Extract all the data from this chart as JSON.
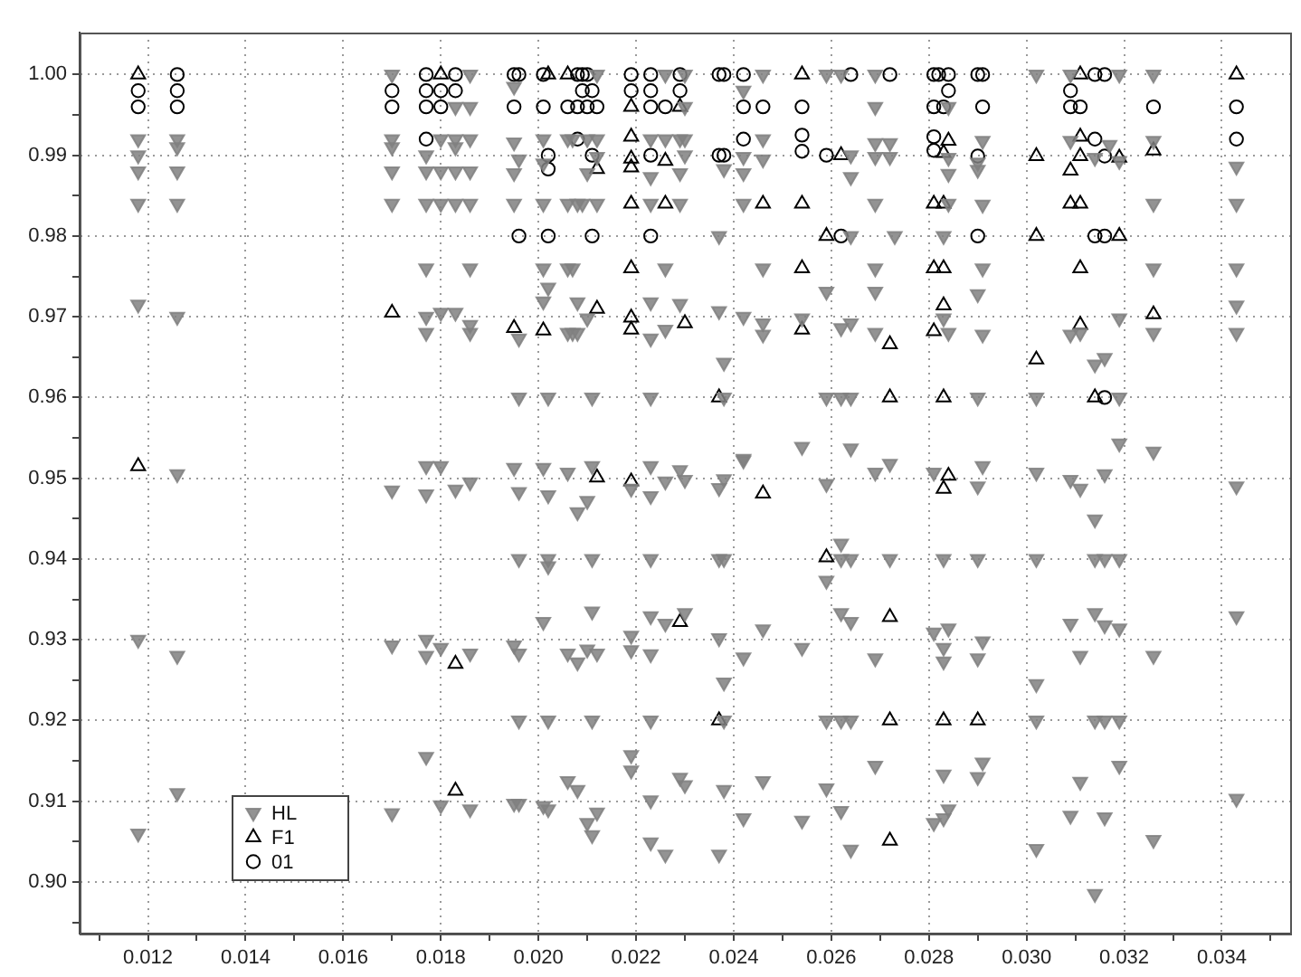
{
  "chart_data": {
    "type": "scatter",
    "xlim": [
      0.0106,
      0.0354
    ],
    "ylim": [
      0.8936,
      1.0052
    ],
    "xticks": [
      {
        "value": 0.011,
        "label": null
      },
      0.012,
      {
        "value": 0.013,
        "label": null
      },
      0.014,
      {
        "value": 0.015,
        "label": null
      },
      0.016,
      {
        "value": 0.017,
        "label": null
      },
      0.018,
      {
        "value": 0.019,
        "label": null
      },
      {
        "value": 0.02,
        "label": "0.020"
      },
      {
        "value": 0.021,
        "label": null
      },
      0.022,
      {
        "value": 0.023,
        "label": null
      },
      0.024,
      {
        "value": 0.025,
        "label": null
      },
      0.026,
      {
        "value": 0.027,
        "label": null
      },
      0.028,
      {
        "value": 0.029,
        "label": null
      },
      {
        "value": 0.03,
        "label": "0.030"
      },
      {
        "value": 0.031,
        "label": null
      },
      0.032,
      {
        "value": 0.033,
        "label": null
      },
      0.034,
      {
        "value": 0.035,
        "label": null
      }
    ],
    "yticks": [
      {
        "value": 0.895,
        "label": null
      },
      {
        "value": 0.9,
        "label": "0.90"
      },
      {
        "value": 0.905,
        "label": null
      },
      {
        "value": 0.91,
        "label": "0.91"
      },
      {
        "value": 0.915,
        "label": null
      },
      {
        "value": 0.92,
        "label": "0.92"
      },
      {
        "value": 0.925,
        "label": null
      },
      {
        "value": 0.93,
        "label": "0.93"
      },
      {
        "value": 0.935,
        "label": null
      },
      {
        "value": 0.94,
        "label": "0.94"
      },
      {
        "value": 0.945,
        "label": null
      },
      {
        "value": 0.95,
        "label": "0.95"
      },
      {
        "value": 0.955,
        "label": null
      },
      {
        "value": 0.96,
        "label": "0.96"
      },
      {
        "value": 0.965,
        "label": null
      },
      {
        "value": 0.97,
        "label": "0.97"
      },
      {
        "value": 0.975,
        "label": null
      },
      {
        "value": 0.98,
        "label": "0.98"
      },
      {
        "value": 0.985,
        "label": null
      },
      {
        "value": 0.99,
        "label": "0.99"
      },
      {
        "value": 0.995,
        "label": null
      },
      {
        "value": 1,
        "label": "1.00"
      }
    ],
    "grid": true,
    "legend": "bottom left",
    "series": [
      {
        "name": "HL",
        "color": "#808080",
        "marker": "triangle-down",
        "x": [
          0.0118,
          0.0118,
          0.0118,
          0.0118,
          0.0118,
          0.0118,
          0.0118,
          0.0126,
          0.0126,
          0.0126,
          0.0126,
          0.0126,
          0.0126,
          0.0126,
          0.0126,
          0.017,
          0.017,
          0.017,
          0.017,
          0.017,
          0.017,
          0.017,
          0.017,
          0.0177,
          0.0177,
          0.0177,
          0.0177,
          0.0177,
          0.0177,
          0.0177,
          0.0177,
          0.0177,
          0.0177,
          0.0177,
          0.018,
          0.018,
          0.018,
          0.018,
          0.018,
          0.018,
          0.018,
          0.0183,
          0.0183,
          0.0183,
          0.0183,
          0.0183,
          0.0183,
          0.0183,
          0.0186,
          0.0186,
          0.0186,
          0.0186,
          0.0186,
          0.0186,
          0.0186,
          0.0186,
          0.0186,
          0.0186,
          0.0186,
          0.0212,
          0.0226,
          0.023,
          0.0246,
          0.0259,
          0.0262,
          0.0269,
          0.0195,
          0.0242,
          0.0269,
          0.023,
          0.0195,
          0.0201,
          0.0206,
          0.0207,
          0.021,
          0.0212,
          0.0223,
          0.0226,
          0.0229,
          0.023,
          0.0246,
          0.0269,
          0.0272,
          0.0196,
          0.0201,
          0.0212,
          0.023,
          0.0242,
          0.0246,
          0.0264,
          0.0269,
          0.0272,
          0.0195,
          0.021,
          0.0223,
          0.0229,
          0.0238,
          0.0242,
          0.0264,
          0.0195,
          0.0201,
          0.0206,
          0.0208,
          0.0209,
          0.0212,
          0.0223,
          0.0229,
          0.0242,
          0.0269,
          0.0237,
          0.0264,
          0.0201,
          0.0206,
          0.0207,
          0.0226,
          0.0246,
          0.0269,
          0.0202,
          0.0259,
          0.0269,
          0.0201,
          0.0208,
          0.0223,
          0.0229,
          0.0237,
          0.0242,
          0.021,
          0.0196,
          0.0206,
          0.0207,
          0.0208,
          0.0223,
          0.0226,
          0.0246,
          0.0246,
          0.0254,
          0.0262,
          0.0264,
          0.0269,
          0.0238,
          0.0196,
          0.0202,
          0.0211,
          0.0223,
          0.0238,
          0.0259,
          0.0262,
          0.0264,
          0.0254,
          0.0264,
          0.0242,
          0.0195,
          0.0201,
          0.0206,
          0.0211,
          0.0219,
          0.0223,
          0.0223,
          0.0226,
          0.0229,
          0.023,
          0.0237,
          0.0238,
          0.0242,
          0.0259,
          0.0269,
          0.0272,
          0.0196,
          0.0202,
          0.0208,
          0.021,
          0.0196,
          0.0202,
          0.0202,
          0.0211,
          0.0223,
          0.0237,
          0.0238,
          0.0262,
          0.0264,
          0.0262,
          0.0259,
          0.0272,
          0.0201,
          0.0211,
          0.0223,
          0.0226,
          0.023,
          0.0246,
          0.0262,
          0.0264,
          0.0195,
          0.0196,
          0.0206,
          0.0208,
          0.021,
          0.0212,
          0.0219,
          0.0219,
          0.0223,
          0.0237,
          0.0242,
          0.0254,
          0.0269,
          0.0238,
          0.0196,
          0.0202,
          0.0211,
          0.0223,
          0.0238,
          0.0259,
          0.0262,
          0.0264,
          0.0219,
          0.0219,
          0.0206,
          0.0208,
          0.0229,
          0.023,
          0.0246,
          0.0238,
          0.0259,
          0.0269,
          0.0195,
          0.0196,
          0.0201,
          0.0202,
          0.0212,
          0.021,
          0.0223,
          0.0242,
          0.0254,
          0.0262,
          0.0211,
          0.0223,
          0.0226,
          0.0237,
          0.0264,
          0.0302,
          0.0309,
          0.0319,
          0.0326,
          0.0284,
          0.0291,
          0.0309,
          0.0317,
          0.0326,
          0.0284,
          0.029,
          0.0314,
          0.0319,
          0.0343,
          0.0284,
          0.029,
          0.0284,
          0.0291,
          0.0326,
          0.0343,
          0.0273,
          0.0283,
          0.0291,
          0.0326,
          0.0343,
          0.029,
          0.0283,
          0.0284,
          0.0291,
          0.0343,
          0.0309,
          0.0311,
          0.0319,
          0.0326,
          0.0343,
          0.0314,
          0.0316,
          0.029,
          0.0302,
          0.0319,
          0.0319,
          0.0326,
          0.0281,
          0.0291,
          0.029,
          0.0302,
          0.0309,
          0.0311,
          0.0316,
          0.0343,
          0.0314,
          0.0283,
          0.029,
          0.0302,
          0.0314,
          0.0316,
          0.0319,
          0.0281,
          0.0284,
          0.0309,
          0.0314,
          0.0316,
          0.0319,
          0.0343,
          0.0283,
          0.0283,
          0.0291,
          0.029,
          0.0311,
          0.0326,
          0.0302,
          0.0302,
          0.0314,
          0.0316,
          0.0319,
          0.0291,
          0.0283,
          0.029,
          0.0319,
          0.0311,
          0.0343,
          0.0284,
          0.0283,
          0.0281,
          0.0309,
          0.0316,
          0.0326,
          0.0302,
          0.0314
        ],
        "values": [
          0.992,
          0.99,
          0.988,
          0.984,
          0.9715,
          0.93,
          0.906,
          0.992,
          0.991,
          0.988,
          0.984,
          0.97,
          0.9505,
          0.928,
          0.911,
          1,
          0.992,
          0.991,
          0.988,
          0.984,
          0.9485,
          0.9293,
          0.9085,
          0.99,
          0.988,
          0.984,
          0.976,
          0.97,
          0.968,
          0.9515,
          0.948,
          0.93,
          0.928,
          0.9155,
          0.992,
          0.988,
          0.984,
          0.9705,
          0.9515,
          0.929,
          0.9095,
          0.996,
          0.992,
          0.991,
          0.988,
          0.984,
          0.9705,
          0.9486,
          1,
          0.996,
          0.992,
          0.988,
          0.984,
          0.976,
          0.969,
          0.968,
          0.9495,
          0.9283,
          0.909,
          1,
          1,
          1,
          1,
          1,
          1,
          1,
          0.9985,
          0.998,
          0.996,
          0.996,
          0.9916,
          0.992,
          0.992,
          0.992,
          0.992,
          0.992,
          0.992,
          0.992,
          0.992,
          0.992,
          0.992,
          0.9915,
          0.9915,
          0.9895,
          0.989,
          0.9898,
          0.99,
          0.9898,
          0.9895,
          0.99,
          0.9898,
          0.9898,
          0.9878,
          0.9878,
          0.9873,
          0.9878,
          0.9883,
          0.9878,
          0.9873,
          0.984,
          0.984,
          0.984,
          0.984,
          0.984,
          0.984,
          0.984,
          0.984,
          0.984,
          0.984,
          0.98,
          0.98,
          0.976,
          0.976,
          0.976,
          0.976,
          0.976,
          0.976,
          0.9736,
          0.9731,
          0.9731,
          0.9719,
          0.9718,
          0.9718,
          0.9716,
          0.9707,
          0.97,
          0.9698,
          0.9673,
          0.968,
          0.968,
          0.968,
          0.9673,
          0.9684,
          0.9692,
          0.9678,
          0.9698,
          0.9686,
          0.9692,
          0.968,
          0.9643,
          0.96,
          0.96,
          0.96,
          0.96,
          0.96,
          0.96,
          0.96,
          0.96,
          0.9539,
          0.9537,
          0.9524,
          0.9513,
          0.9513,
          0.9507,
          0.9515,
          0.9487,
          0.9515,
          0.9478,
          0.9496,
          0.951,
          0.9498,
          0.9488,
          0.9499,
          0.9522,
          0.9493,
          0.9507,
          0.9518,
          0.9483,
          0.9479,
          0.9458,
          0.9472,
          0.94,
          0.94,
          0.9391,
          0.94,
          0.94,
          0.94,
          0.94,
          0.94,
          0.94,
          0.9419,
          0.9373,
          0.94,
          0.9322,
          0.9335,
          0.9329,
          0.932,
          0.9333,
          0.9313,
          0.9333,
          0.9322,
          0.9293,
          0.9283,
          0.9283,
          0.9272,
          0.9288,
          0.9283,
          0.9305,
          0.9287,
          0.9282,
          0.9302,
          0.9278,
          0.929,
          0.9277,
          0.9247,
          0.92,
          0.92,
          0.92,
          0.92,
          0.92,
          0.92,
          0.92,
          0.92,
          0.9157,
          0.9138,
          0.9125,
          0.9114,
          0.9129,
          0.912,
          0.9125,
          0.9114,
          0.9116,
          0.9144,
          0.9097,
          0.9097,
          0.9094,
          0.909,
          0.9086,
          0.9073,
          0.9101,
          0.9079,
          0.9076,
          0.9088,
          0.9058,
          0.9049,
          0.9034,
          0.9034,
          0.904,
          1,
          1,
          1,
          1,
          0.996,
          0.9918,
          0.9918,
          0.9913,
          0.9918,
          0.9897,
          0.9891,
          0.9897,
          0.9893,
          0.9886,
          0.9877,
          0.9882,
          0.984,
          0.9839,
          0.984,
          0.984,
          0.98,
          0.98,
          0.976,
          0.976,
          0.976,
          0.9728,
          0.9698,
          0.968,
          0.9678,
          0.9714,
          0.9678,
          0.968,
          0.9698,
          0.968,
          0.968,
          0.9641,
          0.9649,
          0.96,
          0.96,
          0.96,
          0.9543,
          0.9533,
          0.9507,
          0.9515,
          0.949,
          0.9507,
          0.9498,
          0.9487,
          0.9505,
          0.949,
          0.9449,
          0.94,
          0.94,
          0.94,
          0.94,
          0.94,
          0.94,
          0.9309,
          0.9314,
          0.932,
          0.9333,
          0.9318,
          0.9314,
          0.9329,
          0.929,
          0.9273,
          0.9298,
          0.9277,
          0.928,
          0.928,
          0.9245,
          0.92,
          0.92,
          0.92,
          0.92,
          0.9148,
          0.9133,
          0.913,
          0.9144,
          0.9124,
          0.9103,
          0.909,
          0.9079,
          0.9073,
          0.9082,
          0.908,
          0.9052,
          0.9041,
          0.8985
        ]
      },
      {
        "name": "F1",
        "color": "#000000",
        "marker": "triangle",
        "x": [
          0.0118,
          0.0118,
          0.017,
          0.018,
          0.0183,
          0.0183,
          0.0202,
          0.0206,
          0.0254,
          0.0219,
          0.0229,
          0.0219,
          0.0219,
          0.0226,
          0.0262,
          0.0212,
          0.0219,
          0.0219,
          0.0226,
          0.0246,
          0.0254,
          0.0259,
          0.0219,
          0.0254,
          0.0212,
          0.0195,
          0.0201,
          0.0219,
          0.0219,
          0.023,
          0.0254,
          0.0272,
          0.0237,
          0.0272,
          0.0212,
          0.0219,
          0.0246,
          0.0259,
          0.0229,
          0.0272,
          0.0237,
          0.0272,
          0.0272,
          0.0311,
          0.0343,
          0.0284,
          0.0311,
          0.0283,
          0.0302,
          0.0311,
          0.0319,
          0.0326,
          0.0309,
          0.0281,
          0.0283,
          0.0309,
          0.0311,
          0.0302,
          0.0319,
          0.0281,
          0.0283,
          0.0311,
          0.0283,
          0.0281,
          0.0311,
          0.0326,
          0.0302,
          0.0283,
          0.0314,
          0.0284,
          0.0283,
          0.0283,
          0.029
        ],
        "values": [
          1,
          0.9515,
          0.9705,
          1,
          0.927,
          0.9113,
          1,
          1,
          1,
          0.996,
          0.996,
          0.9923,
          0.9896,
          0.9893,
          0.99,
          0.9883,
          0.9885,
          0.984,
          0.984,
          0.984,
          0.984,
          0.98,
          0.976,
          0.976,
          0.971,
          0.9686,
          0.9683,
          0.9699,
          0.9684,
          0.9692,
          0.9684,
          0.9666,
          0.96,
          0.96,
          0.9501,
          0.9496,
          0.9481,
          0.9402,
          0.9322,
          0.9328,
          0.92,
          0.92,
          0.9051,
          1,
          1,
          0.9918,
          0.9923,
          0.9903,
          0.9899,
          0.9899,
          0.9897,
          0.9906,
          0.9881,
          0.984,
          0.984,
          0.984,
          0.984,
          0.98,
          0.98,
          0.976,
          0.976,
          0.976,
          0.9714,
          0.9682,
          0.969,
          0.9703,
          0.9647,
          0.96,
          0.96,
          0.9503,
          0.9487,
          0.92,
          0.92
        ]
      },
      {
        "name": "01",
        "color": "#000000",
        "marker": "circle",
        "x": [
          0.0118,
          0.0118,
          0.0126,
          0.0126,
          0.0126,
          0.017,
          0.017,
          0.0177,
          0.0177,
          0.0177,
          0.0177,
          0.018,
          0.018,
          0.0183,
          0.0183,
          0.0195,
          0.0196,
          0.0201,
          0.0208,
          0.0209,
          0.021,
          0.0219,
          0.0223,
          0.0229,
          0.0237,
          0.0238,
          0.0242,
          0.0264,
          0.0272,
          0.0209,
          0.0211,
          0.0219,
          0.0223,
          0.0229,
          0.0195,
          0.0201,
          0.0206,
          0.0208,
          0.021,
          0.0212,
          0.0223,
          0.0226,
          0.0242,
          0.0246,
          0.0254,
          0.0208,
          0.0242,
          0.0254,
          0.0202,
          0.0211,
          0.0223,
          0.0237,
          0.0238,
          0.0254,
          0.0259,
          0.0202,
          0.0196,
          0.0202,
          0.0211,
          0.0223,
          0.0262,
          0.0281,
          0.0282,
          0.0284,
          0.029,
          0.0291,
          0.0314,
          0.0316,
          0.0284,
          0.0309,
          0.0281,
          0.0283,
          0.0291,
          0.0309,
          0.0311,
          0.0326,
          0.0343,
          0.0281,
          0.0314,
          0.0343,
          0.0281,
          0.029,
          0.0316,
          0.029,
          0.0314,
          0.0316,
          0.0316
        ],
        "values": [
          0.998,
          0.996,
          1,
          0.998,
          0.996,
          0.998,
          0.996,
          1,
          0.998,
          0.996,
          0.992,
          0.998,
          0.996,
          1,
          0.998,
          1,
          1,
          1,
          1,
          1,
          1,
          1,
          1,
          1,
          1,
          1,
          1,
          1,
          1,
          0.998,
          0.998,
          0.998,
          0.998,
          0.998,
          0.996,
          0.996,
          0.996,
          0.996,
          0.996,
          0.996,
          0.996,
          0.996,
          0.996,
          0.996,
          0.996,
          0.992,
          0.992,
          0.9925,
          0.99,
          0.99,
          0.99,
          0.99,
          0.99,
          0.9905,
          0.99,
          0.9883,
          0.98,
          0.98,
          0.98,
          0.98,
          0.98,
          1,
          1,
          1,
          1,
          1,
          1,
          1,
          0.998,
          0.998,
          0.996,
          0.996,
          0.996,
          0.996,
          0.996,
          0.996,
          0.996,
          0.9923,
          0.992,
          0.992,
          0.9906,
          0.9899,
          0.9899,
          0.98,
          0.98,
          0.98,
          0.96
        ]
      }
    ]
  }
}
